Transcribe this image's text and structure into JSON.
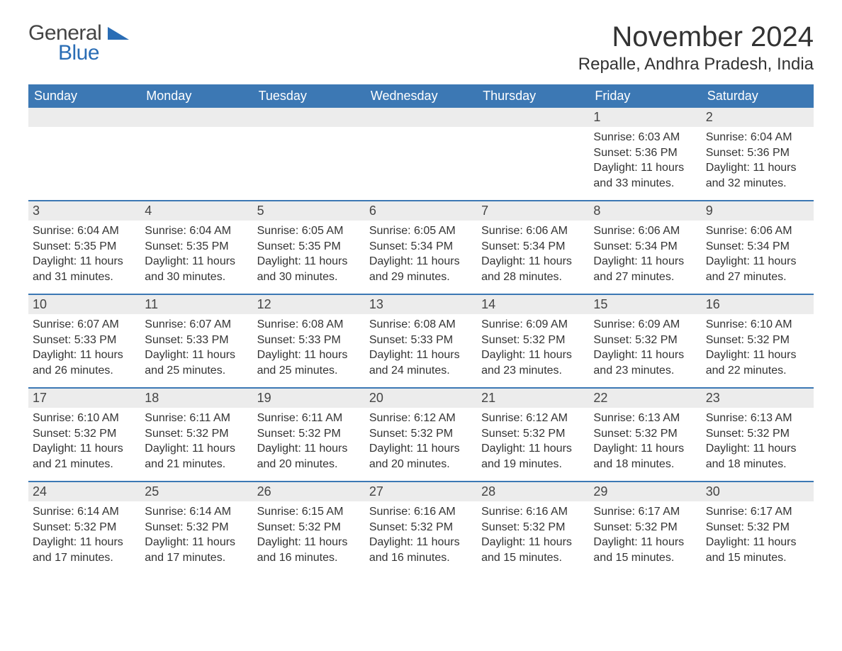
{
  "brand": {
    "part1": "General",
    "part2": "Blue",
    "color1": "#444444",
    "color2": "#2a6db5"
  },
  "title": "November 2024",
  "location": "Repalle, Andhra Pradesh, India",
  "theme": {
    "header_bg": "#3c78b4",
    "header_fg": "#ffffff",
    "daynum_bg": "#ececec",
    "text_color": "#333333",
    "body_bg": "#ffffff",
    "title_fontsize": 40,
    "location_fontsize": 24,
    "dayhead_fontsize": 18,
    "cell_fontsize": 16
  },
  "calendar": {
    "type": "table",
    "columns": [
      "Sunday",
      "Monday",
      "Tuesday",
      "Wednesday",
      "Thursday",
      "Friday",
      "Saturday"
    ],
    "first_day_column_index": 5,
    "days": [
      {
        "n": 1,
        "sunrise": "6:03 AM",
        "sunset": "5:36 PM",
        "daylight": "11 hours and 33 minutes."
      },
      {
        "n": 2,
        "sunrise": "6:04 AM",
        "sunset": "5:36 PM",
        "daylight": "11 hours and 32 minutes."
      },
      {
        "n": 3,
        "sunrise": "6:04 AM",
        "sunset": "5:35 PM",
        "daylight": "11 hours and 31 minutes."
      },
      {
        "n": 4,
        "sunrise": "6:04 AM",
        "sunset": "5:35 PM",
        "daylight": "11 hours and 30 minutes."
      },
      {
        "n": 5,
        "sunrise": "6:05 AM",
        "sunset": "5:35 PM",
        "daylight": "11 hours and 30 minutes."
      },
      {
        "n": 6,
        "sunrise": "6:05 AM",
        "sunset": "5:34 PM",
        "daylight": "11 hours and 29 minutes."
      },
      {
        "n": 7,
        "sunrise": "6:06 AM",
        "sunset": "5:34 PM",
        "daylight": "11 hours and 28 minutes."
      },
      {
        "n": 8,
        "sunrise": "6:06 AM",
        "sunset": "5:34 PM",
        "daylight": "11 hours and 27 minutes."
      },
      {
        "n": 9,
        "sunrise": "6:06 AM",
        "sunset": "5:34 PM",
        "daylight": "11 hours and 27 minutes."
      },
      {
        "n": 10,
        "sunrise": "6:07 AM",
        "sunset": "5:33 PM",
        "daylight": "11 hours and 26 minutes."
      },
      {
        "n": 11,
        "sunrise": "6:07 AM",
        "sunset": "5:33 PM",
        "daylight": "11 hours and 25 minutes."
      },
      {
        "n": 12,
        "sunrise": "6:08 AM",
        "sunset": "5:33 PM",
        "daylight": "11 hours and 25 minutes."
      },
      {
        "n": 13,
        "sunrise": "6:08 AM",
        "sunset": "5:33 PM",
        "daylight": "11 hours and 24 minutes."
      },
      {
        "n": 14,
        "sunrise": "6:09 AM",
        "sunset": "5:32 PM",
        "daylight": "11 hours and 23 minutes."
      },
      {
        "n": 15,
        "sunrise": "6:09 AM",
        "sunset": "5:32 PM",
        "daylight": "11 hours and 23 minutes."
      },
      {
        "n": 16,
        "sunrise": "6:10 AM",
        "sunset": "5:32 PM",
        "daylight": "11 hours and 22 minutes."
      },
      {
        "n": 17,
        "sunrise": "6:10 AM",
        "sunset": "5:32 PM",
        "daylight": "11 hours and 21 minutes."
      },
      {
        "n": 18,
        "sunrise": "6:11 AM",
        "sunset": "5:32 PM",
        "daylight": "11 hours and 21 minutes."
      },
      {
        "n": 19,
        "sunrise": "6:11 AM",
        "sunset": "5:32 PM",
        "daylight": "11 hours and 20 minutes."
      },
      {
        "n": 20,
        "sunrise": "6:12 AM",
        "sunset": "5:32 PM",
        "daylight": "11 hours and 20 minutes."
      },
      {
        "n": 21,
        "sunrise": "6:12 AM",
        "sunset": "5:32 PM",
        "daylight": "11 hours and 19 minutes."
      },
      {
        "n": 22,
        "sunrise": "6:13 AM",
        "sunset": "5:32 PM",
        "daylight": "11 hours and 18 minutes."
      },
      {
        "n": 23,
        "sunrise": "6:13 AM",
        "sunset": "5:32 PM",
        "daylight": "11 hours and 18 minutes."
      },
      {
        "n": 24,
        "sunrise": "6:14 AM",
        "sunset": "5:32 PM",
        "daylight": "11 hours and 17 minutes."
      },
      {
        "n": 25,
        "sunrise": "6:14 AM",
        "sunset": "5:32 PM",
        "daylight": "11 hours and 17 minutes."
      },
      {
        "n": 26,
        "sunrise": "6:15 AM",
        "sunset": "5:32 PM",
        "daylight": "11 hours and 16 minutes."
      },
      {
        "n": 27,
        "sunrise": "6:16 AM",
        "sunset": "5:32 PM",
        "daylight": "11 hours and 16 minutes."
      },
      {
        "n": 28,
        "sunrise": "6:16 AM",
        "sunset": "5:32 PM",
        "daylight": "11 hours and 15 minutes."
      },
      {
        "n": 29,
        "sunrise": "6:17 AM",
        "sunset": "5:32 PM",
        "daylight": "11 hours and 15 minutes."
      },
      {
        "n": 30,
        "sunrise": "6:17 AM",
        "sunset": "5:32 PM",
        "daylight": "11 hours and 15 minutes."
      }
    ],
    "labels": {
      "sunrise": "Sunrise:",
      "sunset": "Sunset:",
      "daylight": "Daylight:"
    }
  }
}
